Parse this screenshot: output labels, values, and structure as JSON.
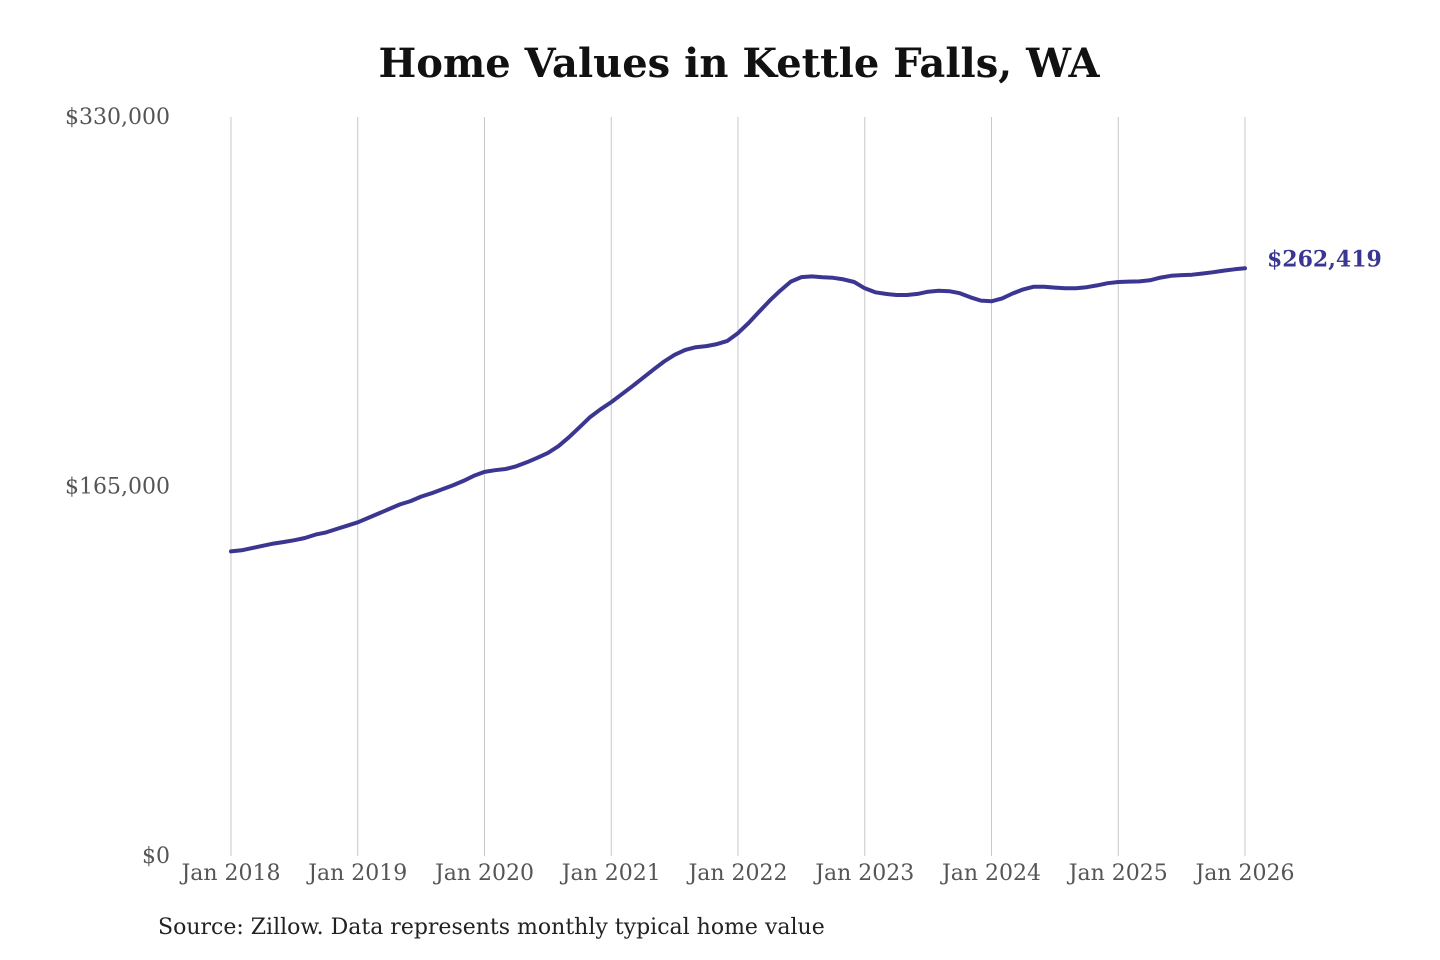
{
  "chart_data": {
    "type": "line",
    "title": "Home Values in Kettle Falls, WA",
    "xlabel": "",
    "ylabel": "",
    "ylim": [
      0,
      330000
    ],
    "y_ticks": [
      0,
      165000,
      330000
    ],
    "y_tick_labels": [
      "$0",
      "$165,000",
      "$330,000"
    ],
    "x_ticks": [
      "2018-01",
      "2019-01",
      "2020-01",
      "2021-01",
      "2022-01",
      "2023-01",
      "2024-01",
      "2025-01",
      "2026-01"
    ],
    "x_tick_labels": [
      "Jan 2018",
      "Jan 2019",
      "Jan 2020",
      "Jan 2021",
      "Jan 2022",
      "Jan 2023",
      "Jan 2024",
      "Jan 2025",
      "Jan 2026"
    ],
    "grid": "vertical",
    "line_color": "#3b3691",
    "end_label": "$262,419",
    "x": [
      "2018-01",
      "2018-02",
      "2018-03",
      "2018-04",
      "2018-05",
      "2018-06",
      "2018-07",
      "2018-08",
      "2018-09",
      "2018-10",
      "2018-11",
      "2018-12",
      "2019-01",
      "2019-02",
      "2019-03",
      "2019-04",
      "2019-05",
      "2019-06",
      "2019-07",
      "2019-08",
      "2019-09",
      "2019-10",
      "2019-11",
      "2019-12",
      "2020-01",
      "2020-02",
      "2020-03",
      "2020-04",
      "2020-05",
      "2020-06",
      "2020-07",
      "2020-08",
      "2020-09",
      "2020-10",
      "2020-11",
      "2020-12",
      "2021-01",
      "2021-02",
      "2021-03",
      "2021-04",
      "2021-05",
      "2021-06",
      "2021-07",
      "2021-08",
      "2021-09",
      "2021-10",
      "2021-11",
      "2021-12",
      "2022-01",
      "2022-02",
      "2022-03",
      "2022-04",
      "2022-05",
      "2022-06",
      "2022-07",
      "2022-08",
      "2022-09",
      "2022-10",
      "2022-11",
      "2022-12",
      "2023-01",
      "2023-02",
      "2023-03",
      "2023-04",
      "2023-05",
      "2023-06",
      "2023-07",
      "2023-08",
      "2023-09",
      "2023-10",
      "2023-11",
      "2023-12",
      "2024-01",
      "2024-02",
      "2024-03",
      "2024-04",
      "2024-05",
      "2024-06",
      "2024-07",
      "2024-08",
      "2024-09",
      "2024-10",
      "2024-11",
      "2024-12",
      "2025-01",
      "2025-02",
      "2025-03",
      "2025-04",
      "2025-05",
      "2025-06",
      "2025-07",
      "2025-08",
      "2025-09",
      "2025-10",
      "2025-11",
      "2025-12",
      "2026-01"
    ],
    "series": [
      {
        "values": [
          136000,
          136500,
          137500,
          138500,
          139500,
          140200,
          141000,
          142000,
          143500,
          144500,
          146000,
          147500,
          149000,
          151000,
          153000,
          155000,
          157000,
          158500,
          160500,
          162000,
          163800,
          165500,
          167500,
          169800,
          171500,
          172300,
          172800,
          174000,
          175800,
          177800,
          180000,
          183000,
          187000,
          191500,
          196000,
          199500,
          202700,
          206200,
          209800,
          213500,
          217200,
          220800,
          223800,
          226000,
          227200,
          227700,
          228600,
          230000,
          233500,
          238000,
          243000,
          248000,
          252500,
          256500,
          258500,
          258800,
          258400,
          258200,
          257500,
          256300,
          253500,
          251700,
          251000,
          250500,
          250500,
          251000,
          252000,
          252400,
          252200,
          251300,
          249500,
          248000,
          247700,
          249000,
          251200,
          253000,
          254200,
          254200,
          253800,
          253500,
          253500,
          254000,
          254800,
          255800,
          256300,
          256500,
          256600,
          257100,
          258300,
          259100,
          259400,
          259600,
          260100,
          260700,
          261400,
          262000,
          262419
        ]
      }
    ]
  },
  "footer": {
    "source": "Source: Zillow. Data represents monthly typical home value"
  }
}
